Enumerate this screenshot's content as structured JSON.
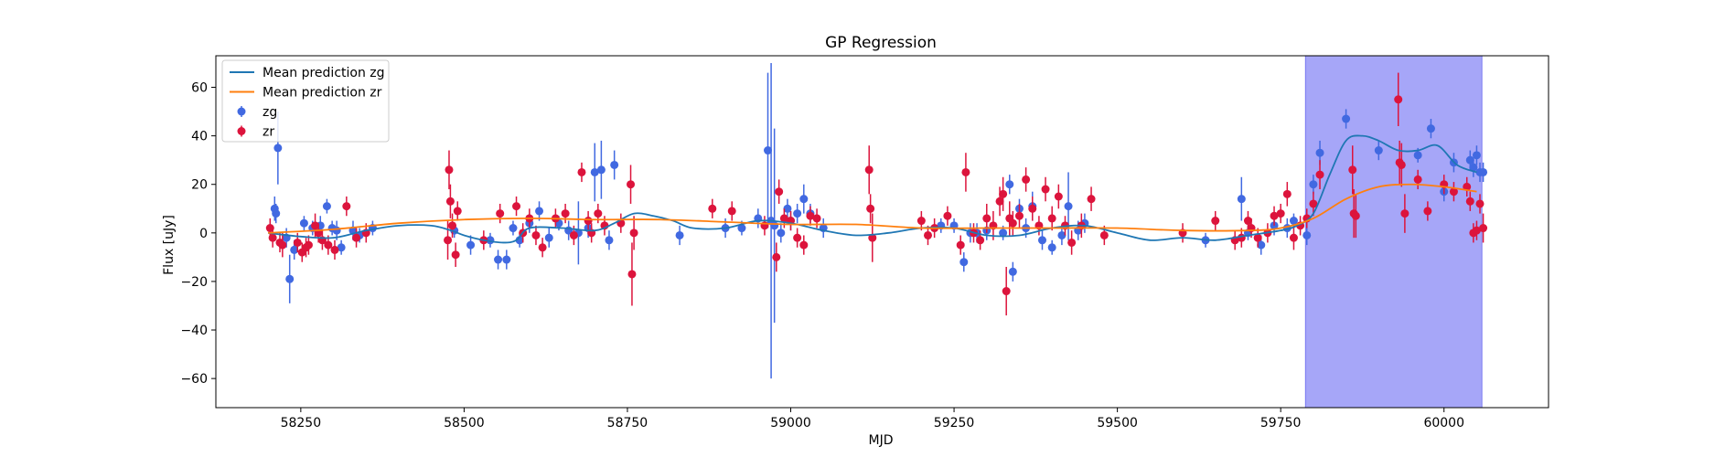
{
  "chart_data": {
    "type": "scatter",
    "title": "GP Regression",
    "xlabel": "MJD",
    "ylabel": "Flux [uJy]",
    "xlim": [
      58120,
      60160
    ],
    "ylim": [
      -72,
      73
    ],
    "xticks": [
      58250,
      58500,
      58750,
      59000,
      59250,
      59500,
      59750,
      60000
    ],
    "yticks": [
      -60,
      -40,
      -20,
      0,
      20,
      40,
      60
    ],
    "grid": false,
    "legend_position": "top-left",
    "shaded_region": {
      "x_start": 59788,
      "x_end": 60058,
      "color": "#a6a6f8"
    },
    "series": [
      {
        "name": "Mean prediction zg",
        "kind": "line",
        "color": "#1f77b4",
        "x": [
          58200,
          58250,
          58300,
          58350,
          58400,
          58450,
          58480,
          58500,
          58530,
          58560,
          58580,
          58600,
          58650,
          58700,
          58730,
          58760,
          58790,
          58820,
          58850,
          58900,
          58950,
          59000,
          59050,
          59100,
          59150,
          59200,
          59250,
          59300,
          59350,
          59400,
          59450,
          59500,
          59550,
          59600,
          59650,
          59700,
          59750,
          59775,
          59800,
          59825,
          59850,
          59875,
          59900,
          59930,
          59960,
          59990,
          60020,
          60050
        ],
        "y": [
          0,
          -1.5,
          -2,
          1,
          3,
          3,
          1,
          -1,
          -3,
          -4,
          -3,
          2,
          2,
          1,
          4,
          8,
          7,
          5,
          2,
          2,
          5,
          4,
          1,
          -1,
          0,
          2,
          2,
          -1,
          -1,
          2,
          3,
          0,
          -3,
          -2,
          -3,
          -1,
          1,
          3,
          8,
          24,
          38,
          40,
          38,
          34,
          34,
          36,
          28,
          25
        ]
      },
      {
        "name": "Mean prediction zr",
        "kind": "line",
        "color": "#ff7f0e",
        "x": [
          58200,
          58300,
          58400,
          58500,
          58600,
          58700,
          58800,
          58900,
          59000,
          59100,
          59200,
          59300,
          59400,
          59500,
          59600,
          59700,
          59750,
          59800,
          59850,
          59900,
          59950,
          60000,
          60050
        ],
        "y": [
          0,
          1.5,
          4,
          5.5,
          6,
          5.5,
          5.5,
          4.5,
          3.5,
          3.5,
          2,
          2,
          2,
          2,
          1,
          1,
          2,
          6,
          14,
          19,
          20,
          19,
          17
        ]
      },
      {
        "name": "zg",
        "kind": "errorbar",
        "color": "#4169e1",
        "x": [
          58210,
          58212,
          58215,
          58228,
          58233,
          58240,
          58255,
          58268,
          58280,
          58290,
          58298,
          58305,
          58312,
          58330,
          58340,
          58360,
          58485,
          58510,
          58540,
          58552,
          58565,
          58575,
          58585,
          58600,
          58615,
          58630,
          58645,
          58660,
          58675,
          58690,
          58700,
          58710,
          58722,
          58730,
          58830,
          58900,
          58925,
          58950,
          58965,
          58970,
          58975,
          58985,
          58995,
          59000,
          59010,
          59020,
          59030,
          59050,
          59230,
          59250,
          59265,
          59275,
          59285,
          59300,
          59325,
          59335,
          59340,
          59350,
          59360,
          59370,
          59385,
          59400,
          59415,
          59425,
          59440,
          59450,
          59635,
          59690,
          59700,
          59720,
          59740,
          59760,
          59770,
          59790,
          59800,
          59810,
          59850,
          59900,
          59960,
          59980,
          60000,
          60015,
          60040,
          60045,
          60050,
          60055,
          60060
        ],
        "y": [
          10,
          8,
          35,
          -2,
          -19,
          -7,
          4,
          2,
          3,
          11,
          2,
          1,
          -6,
          1,
          -1,
          2,
          1,
          -5,
          -3,
          -11,
          -11,
          2,
          -3,
          4,
          9,
          -2,
          4,
          1,
          0,
          2,
          25,
          26,
          -3,
          28,
          -1,
          2,
          2,
          6,
          34,
          5,
          3,
          0,
          10,
          5,
          8,
          14,
          8,
          2,
          3,
          3,
          -12,
          0,
          0,
          1,
          0,
          20,
          -16,
          10,
          2,
          11,
          -3,
          -6,
          -1,
          11,
          1,
          4,
          -3,
          14,
          0,
          -5,
          3,
          2,
          5,
          -1,
          20,
          33,
          47,
          34,
          32,
          43,
          17,
          29,
          30,
          27,
          32,
          25,
          25
        ],
        "yerr": [
          5,
          4,
          15,
          4,
          10,
          4,
          3,
          3,
          4,
          3,
          3,
          4,
          3,
          4,
          3,
          3,
          3,
          4,
          3,
          4,
          4,
          3,
          3,
          4,
          4,
          4,
          3,
          4,
          13,
          4,
          12,
          12,
          4,
          6,
          4,
          4,
          3,
          4,
          32,
          65,
          40,
          4,
          4,
          4,
          4,
          6,
          4,
          4,
          3,
          3,
          4,
          4,
          4,
          4,
          3,
          4,
          4,
          4,
          4,
          6,
          4,
          3,
          4,
          14,
          4,
          4,
          3,
          9,
          3,
          4,
          4,
          4,
          3,
          4,
          4,
          5,
          4,
          4,
          3,
          4,
          4,
          4,
          4,
          4,
          4,
          4,
          4
        ]
      },
      {
        "name": "zr",
        "kind": "errorbar",
        "color": "#dc143c",
        "x": [
          58203,
          58207,
          58218,
          58222,
          58245,
          58252,
          58258,
          58262,
          58272,
          58277,
          58283,
          58292,
          58302,
          58320,
          58335,
          58350,
          58475,
          58477,
          58479,
          58482,
          58487,
          58490,
          58530,
          58555,
          58580,
          58590,
          58600,
          58610,
          58620,
          58640,
          58655,
          58668,
          58680,
          58690,
          58695,
          58705,
          58715,
          58740,
          58755,
          58757,
          58760,
          58880,
          58910,
          58960,
          58978,
          58982,
          58990,
          59000,
          59010,
          59020,
          59030,
          59040,
          59120,
          59122,
          59125,
          59200,
          59210,
          59220,
          59240,
          59260,
          59268,
          59280,
          59290,
          59300,
          59310,
          59320,
          59325,
          59330,
          59335,
          59340,
          59350,
          59360,
          59370,
          59380,
          59390,
          59400,
          59410,
          59420,
          59430,
          59445,
          59460,
          59480,
          59600,
          59650,
          59680,
          59690,
          59700,
          59705,
          59715,
          59730,
          59740,
          59750,
          59760,
          59770,
          59780,
          59790,
          59800,
          59810,
          59860,
          59862,
          59865,
          59930,
          59932,
          59935,
          59940,
          59960,
          59975,
          60000,
          60015,
          60035,
          60040,
          60045,
          60050,
          60055,
          60060
        ],
        "y": [
          2,
          -2,
          -4,
          -5,
          -4,
          -8,
          -6,
          -5,
          3,
          0,
          -3,
          -5,
          -7,
          11,
          -2,
          0,
          -3,
          26,
          13,
          3,
          -9,
          9,
          -3,
          8,
          11,
          0,
          6,
          -1,
          -6,
          6,
          8,
          -1,
          25,
          5,
          0,
          8,
          3,
          4,
          20,
          -17,
          0,
          10,
          9,
          3,
          -10,
          17,
          6,
          5,
          -2,
          -5,
          7,
          6,
          26,
          10,
          -2,
          5,
          -1,
          2,
          7,
          -5,
          25,
          0,
          -3,
          6,
          3,
          13,
          16,
          -24,
          6,
          4,
          7,
          22,
          10,
          3,
          18,
          6,
          15,
          3,
          -4,
          3,
          14,
          -1,
          0,
          5,
          -3,
          -2,
          5,
          2,
          -2,
          0,
          7,
          8,
          16,
          -2,
          3,
          6,
          12,
          24,
          26,
          8,
          7,
          55,
          29,
          28,
          8,
          22,
          9,
          20,
          17,
          19,
          13,
          0,
          1,
          12,
          2
        ],
        "yerr": [
          4,
          4,
          4,
          5,
          4,
          4,
          4,
          4,
          5,
          4,
          4,
          4,
          4,
          4,
          4,
          4,
          8,
          8,
          7,
          5,
          5,
          4,
          4,
          4,
          4,
          4,
          4,
          4,
          4,
          4,
          4,
          4,
          4,
          4,
          4,
          4,
          4,
          4,
          8,
          13,
          7,
          4,
          4,
          4,
          6,
          5,
          4,
          4,
          4,
          4,
          4,
          4,
          10,
          6,
          10,
          4,
          4,
          4,
          4,
          4,
          8,
          4,
          4,
          6,
          6,
          6,
          7,
          10,
          7,
          5,
          5,
          5,
          5,
          4,
          5,
          5,
          5,
          4,
          5,
          5,
          5,
          4,
          4,
          4,
          4,
          4,
          4,
          4,
          4,
          4,
          4,
          4,
          5,
          5,
          4,
          4,
          5,
          6,
          10,
          10,
          9,
          11,
          9,
          9,
          8,
          4,
          4,
          4,
          4,
          4,
          4,
          4,
          4,
          4,
          6
        ]
      }
    ]
  }
}
